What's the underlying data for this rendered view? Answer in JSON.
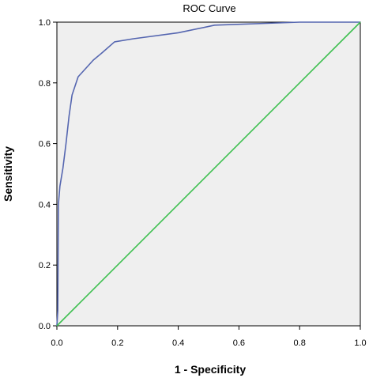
{
  "chart_data": {
    "type": "line",
    "title": "ROC Curve",
    "xlabel": "1 - Specificity",
    "ylabel": "Sensitivity",
    "xlim": [
      0,
      1
    ],
    "ylim": [
      0,
      1
    ],
    "xticks": [
      "0.0",
      "0.2",
      "0.4",
      "0.6",
      "0.8",
      "1.0"
    ],
    "yticks": [
      "0.0",
      "0.2",
      "0.4",
      "0.6",
      "0.8",
      "1.0"
    ],
    "grid": false,
    "plot_background": "#efefef",
    "series": [
      {
        "color": "#5566b0",
        "x": [
          0,
          0.003,
          0.005,
          0.01,
          0.02,
          0.03,
          0.04,
          0.05,
          0.07,
          0.12,
          0.15,
          0.19,
          0.25,
          0.4,
          0.52,
          0.8,
          1.0
        ],
        "y": [
          0,
          0.05,
          0.4,
          0.46,
          0.52,
          0.6,
          0.69,
          0.76,
          0.82,
          0.875,
          0.9,
          0.935,
          0.945,
          0.965,
          0.99,
          1.0,
          1.0
        ]
      },
      {
        "color": "#3ec050",
        "x": [
          0,
          1
        ],
        "y": [
          0,
          1
        ]
      }
    ]
  }
}
